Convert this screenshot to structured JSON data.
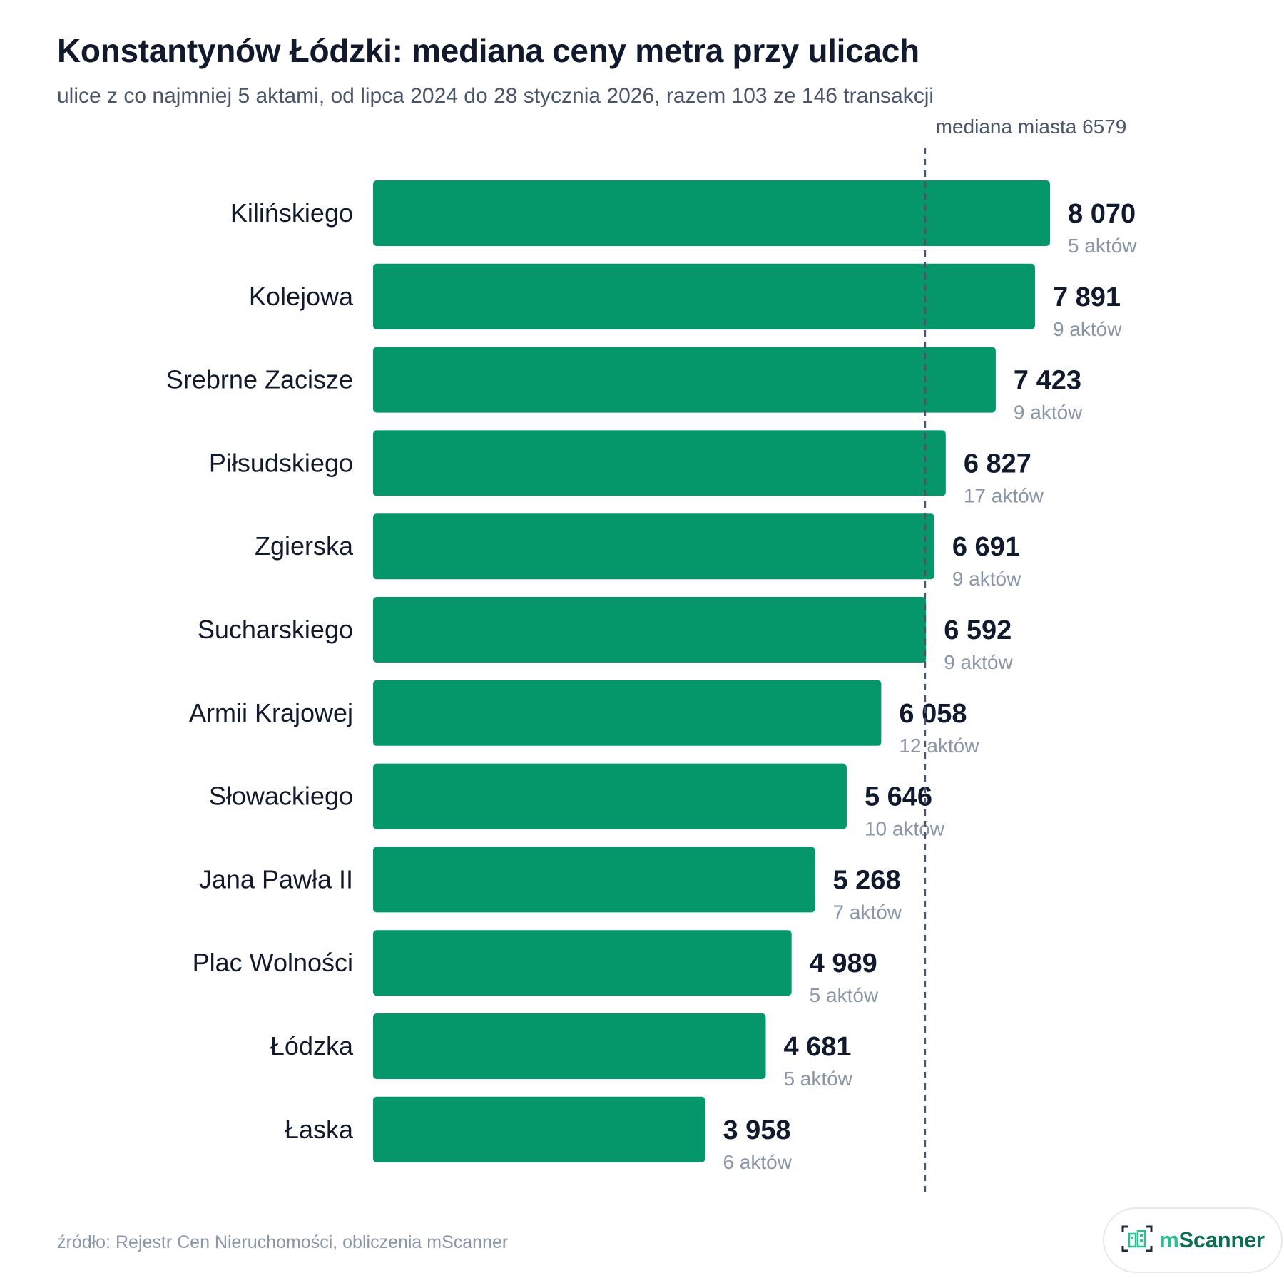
{
  "chart_data": {
    "type": "bar",
    "orientation": "horizontal",
    "title": "Konstantynów Łódzki: mediana ceny metra przy ulicach",
    "subtitle": "ulice z co najmniej 5 aktami, od lipca 2024 do 28 stycznia 2026, razem 103 ze 146 transakcji",
    "categories": [
      "Kilińskiego",
      "Kolejowa",
      "Srebrne Zacisze",
      "Piłsudskiego",
      "Zgierska",
      "Sucharskiego",
      "Armii Krajowej",
      "Słowackiego",
      "Jana Pawła II",
      "Plac Wolności",
      "Łódzka",
      "Łaska"
    ],
    "values": [
      8070,
      7891,
      7423,
      6827,
      6691,
      6592,
      6058,
      5646,
      5268,
      4989,
      4681,
      3958
    ],
    "value_labels": [
      "8 070",
      "7 891",
      "7 423",
      "6 827",
      "6 691",
      "6 592",
      "6 058",
      "5 646",
      "5 268",
      "4 989",
      "4 681",
      "3 958"
    ],
    "count_labels": [
      "5 aktów",
      "9 aktów",
      "9 aktów",
      "17 aktów",
      "9 aktów",
      "9 aktów",
      "12 aktów",
      "10 aktów",
      "7 aktów",
      "5 aktów",
      "5 aktów",
      "6 aktów"
    ],
    "reference_line": {
      "value": 6579,
      "label": "mediana miasta 6579",
      "style": "dashed"
    },
    "xlim": [
      0,
      8070
    ],
    "grid": false,
    "bar_color": "#059669",
    "reference_color": "#4a5568"
  },
  "footer": {
    "source": "źródło: Rejestr Cen Nieruchomości, obliczenia mScanner",
    "brand": "mScanner",
    "brand_icon": "building-icon"
  }
}
